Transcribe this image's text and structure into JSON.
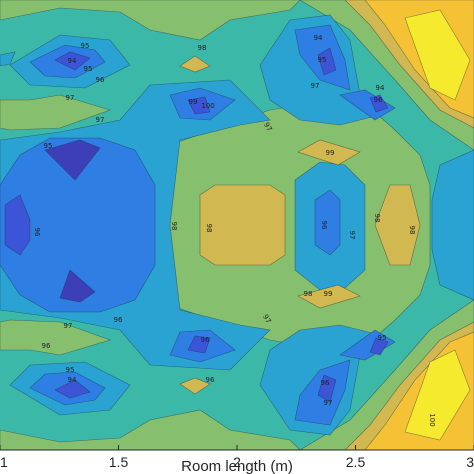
{
  "chart_data": {
    "type": "contour",
    "xlabel": "Room length (m)",
    "ylabel": "",
    "title": "",
    "xlim": [
      1,
      3
    ],
    "x_ticks": [
      1,
      1.5,
      2,
      2.5,
      3
    ],
    "x_tick_labels": [
      "1",
      "1.5",
      "2",
      "2.5",
      "3"
    ],
    "contour_levels": [
      94,
      95,
      96,
      97,
      98,
      99,
      100
    ],
    "level_colors": {
      "93": "#3c3fb7",
      "94": "#3b55d6",
      "95": "#2f7ee3",
      "96": "#2aa3d3",
      "97": "#3cb8a9",
      "98": "#86bf6d",
      "99": "#d1b850",
      "100": "#f6c235",
      "101": "#f6ea2f"
    },
    "contour_labels": [
      "95",
      "94",
      "95",
      "96",
      "97",
      "98",
      "99",
      "100",
      "97",
      "94",
      "95",
      "97",
      "96",
      "94",
      "95",
      "96",
      "97",
      "98",
      "98",
      "96",
      "97",
      "98",
      "98",
      "99",
      "96",
      "97",
      "94",
      "95",
      "96",
      "95",
      "96",
      "97",
      "98",
      "99",
      "100",
      "96",
      "97",
      "96"
    ],
    "grid": false,
    "legend": "none"
  }
}
